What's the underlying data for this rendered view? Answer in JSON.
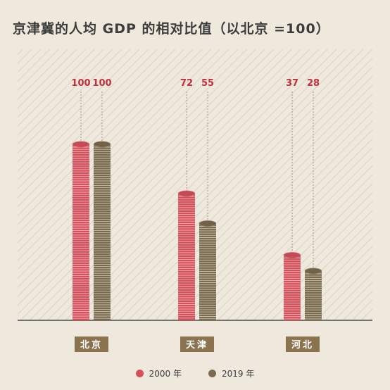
{
  "chart_data": {
    "type": "bar",
    "title": "京津冀的人均 GDP 的相对比值（以北京 =100）",
    "categories": [
      "北京",
      "天津",
      "河北"
    ],
    "series": [
      {
        "name": "2000 年",
        "values": [
          100,
          72,
          37
        ],
        "color": "#d5505a"
      },
      {
        "name": "2019 年",
        "values": [
          100,
          55,
          28
        ],
        "color": "#7b6b4e"
      }
    ],
    "ylim": [
      0,
      100
    ],
    "grid": false,
    "legend_position": "bottom-center",
    "xlabel": "",
    "ylabel": ""
  },
  "colors": {
    "background": "#efe8dd",
    "hatch": "#d6cdbf",
    "axis": "#4a4a4a",
    "category_box": "#8b734f",
    "category_text": "#ffffff",
    "value_label": "#c0303c",
    "title": "#3c3c3c"
  }
}
